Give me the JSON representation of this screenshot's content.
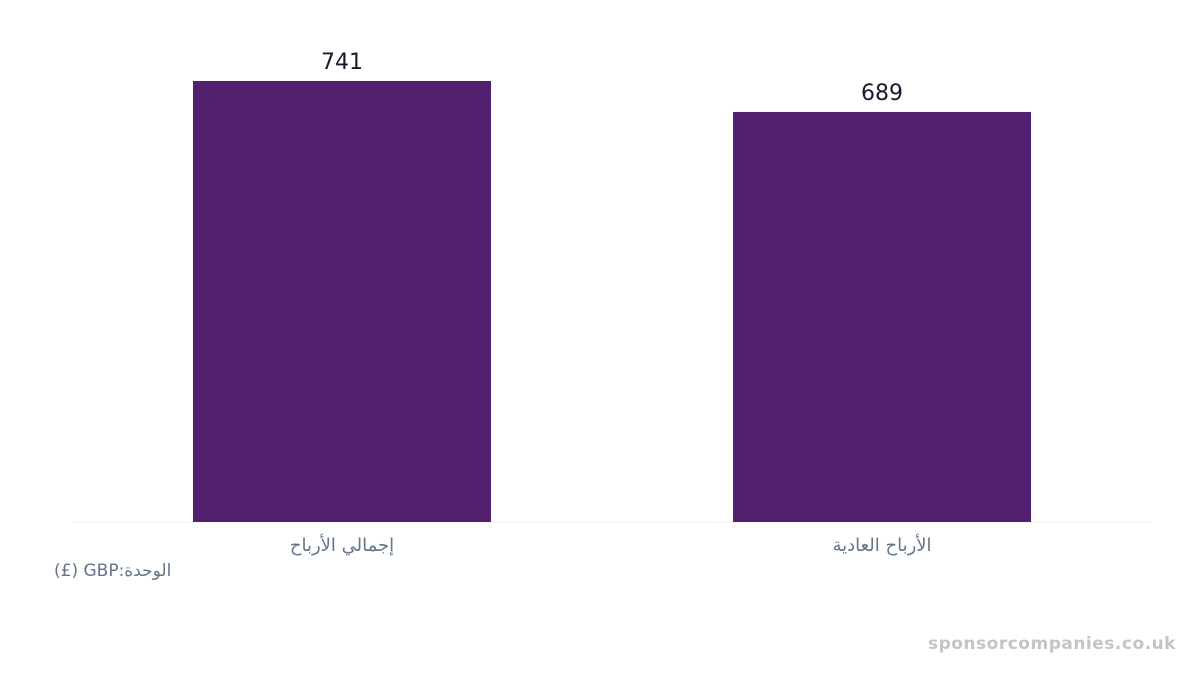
{
  "chart_data": {
    "type": "bar",
    "categories": [
      "إجمالي الأرباح",
      "الأرباح العادية"
    ],
    "values": [
      741,
      689
    ],
    "color": "#52206f",
    "unit_label": "الوحدة:GBP (£)",
    "watermark": "sponsorcompanies.co.uk"
  }
}
